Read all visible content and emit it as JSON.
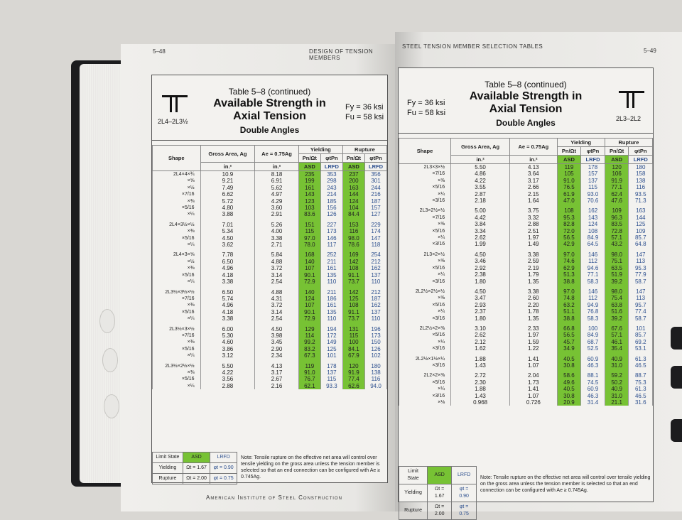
{
  "left_page": {
    "page_number": "5–48",
    "running_head": "DESIGN OF TENSION MEMBERS",
    "table_title": "Table 5–8 (continued)",
    "title_line1": "Available Strength in",
    "title_line2": "Axial Tension",
    "subtitle": "Double Angles",
    "shape_label": "2L4–2L3½",
    "fy": "Fy = 36 ksi",
    "fu": "Fu = 58 ksi",
    "footer": "American Institute of Steel Construction",
    "rows": [
      [
        "2L4×4×¾",
        "10.9",
        "8.18",
        "235",
        "353",
        "237",
        "356"
      ],
      [
        "×⅝",
        "9.21",
        "6.91",
        "199",
        "298",
        "200",
        "301"
      ],
      [
        "×½",
        "7.49",
        "5.62",
        "161",
        "243",
        "163",
        "244"
      ],
      [
        "×7/16",
        "6.62",
        "4.97",
        "143",
        "214",
        "144",
        "216"
      ],
      [
        "×⅜",
        "5.72",
        "4.29",
        "123",
        "185",
        "124",
        "187"
      ],
      [
        "×5/16",
        "4.80",
        "3.60",
        "103",
        "156",
        "104",
        "157"
      ],
      [
        "×¼",
        "3.88",
        "2.91",
        "83.6",
        "126",
        "84.4",
        "127"
      ],
      null,
      [
        "2L4×3½×½",
        "7.01",
        "5.26",
        "151",
        "227",
        "153",
        "229"
      ],
      [
        "×⅜",
        "5.34",
        "4.00",
        "115",
        "173",
        "116",
        "174"
      ],
      [
        "×5/16",
        "4.50",
        "3.38",
        "97.0",
        "146",
        "98.0",
        "147"
      ],
      [
        "×¼",
        "3.62",
        "2.71",
        "78.0",
        "117",
        "78.6",
        "118"
      ],
      null,
      [
        "2L4×3×⅝",
        "7.78",
        "5.84",
        "168",
        "252",
        "169",
        "254"
      ],
      [
        "×½",
        "6.50",
        "4.88",
        "140",
        "211",
        "142",
        "212"
      ],
      [
        "×⅜",
        "4.96",
        "3.72",
        "107",
        "161",
        "108",
        "162"
      ],
      [
        "×5/16",
        "4.18",
        "3.14",
        "90.1",
        "135",
        "91.1",
        "137"
      ],
      [
        "×¼",
        "3.38",
        "2.54",
        "72.9",
        "110",
        "73.7",
        "110"
      ],
      null,
      [
        "2L3½×3½×½",
        "6.50",
        "4.88",
        "140",
        "211",
        "142",
        "212"
      ],
      [
        "×7/16",
        "5.74",
        "4.31",
        "124",
        "186",
        "125",
        "187"
      ],
      [
        "×⅜",
        "4.96",
        "3.72",
        "107",
        "161",
        "108",
        "162"
      ],
      [
        "×5/16",
        "4.18",
        "3.14",
        "90.1",
        "135",
        "91.1",
        "137"
      ],
      [
        "×¼",
        "3.38",
        "2.54",
        "72.9",
        "110",
        "73.7",
        "110"
      ],
      null,
      [
        "2L3½×3×½",
        "6.00",
        "4.50",
        "129",
        "194",
        "131",
        "196"
      ],
      [
        "×7/16",
        "5.30",
        "3.98",
        "114",
        "172",
        "115",
        "173"
      ],
      [
        "×⅜",
        "4.60",
        "3.45",
        "99.2",
        "149",
        "100",
        "150"
      ],
      [
        "×5/16",
        "3.86",
        "2.90",
        "83.2",
        "125",
        "84.1",
        "126"
      ],
      [
        "×¼",
        "3.12",
        "2.34",
        "67.3",
        "101",
        "67.9",
        "102"
      ],
      null,
      [
        "2L3½×2½×½",
        "5.50",
        "4.13",
        "119",
        "178",
        "120",
        "180"
      ],
      [
        "×⅜",
        "4.22",
        "3.17",
        "91.0",
        "137",
        "91.9",
        "138"
      ],
      [
        "×5/16",
        "3.56",
        "2.67",
        "76.7",
        "115",
        "77.4",
        "116"
      ],
      [
        "×¼",
        "2.88",
        "2.16",
        "62.1",
        "93.3",
        "62.6",
        "94.0"
      ]
    ]
  },
  "right_page": {
    "page_number": "5–49",
    "running_head": "STEEL TENSION MEMBER SELECTION TABLES",
    "table_title": "Table 5–8 (continued)",
    "title_line1": "Available Strength in",
    "title_line2": "Axial Tension",
    "subtitle": "Double Angles",
    "shape_label": "2L3–2L2",
    "fy": "Fy = 36 ksi",
    "fu": "Fu = 58 ksi",
    "rows": [
      [
        "2L3×3×½",
        "5.50",
        "4.13",
        "119",
        "178",
        "120",
        "180"
      ],
      [
        "×7/16",
        "4.86",
        "3.64",
        "105",
        "157",
        "106",
        "158"
      ],
      [
        "×⅜",
        "4.22",
        "3.17",
        "91.0",
        "137",
        "91.9",
        "138"
      ],
      [
        "×5/16",
        "3.55",
        "2.66",
        "76.5",
        "115",
        "77.1",
        "116"
      ],
      [
        "×¼",
        "2.87",
        "2.15",
        "61.9",
        "93.0",
        "62.4",
        "93.5"
      ],
      [
        "×3/16",
        "2.18",
        "1.64",
        "47.0",
        "70.6",
        "47.6",
        "71.3"
      ],
      null,
      [
        "2L3×2½×½",
        "5.00",
        "3.75",
        "108",
        "162",
        "109",
        "163"
      ],
      [
        "×7/16",
        "4.42",
        "3.32",
        "95.3",
        "143",
        "96.3",
        "144"
      ],
      [
        "×⅜",
        "3.84",
        "2.88",
        "82.8",
        "124",
        "83.5",
        "125"
      ],
      [
        "×5/16",
        "3.34",
        "2.51",
        "72.0",
        "108",
        "72.8",
        "109"
      ],
      [
        "×¼",
        "2.62",
        "1.97",
        "56.5",
        "84.9",
        "57.1",
        "85.7"
      ],
      [
        "×3/16",
        "1.99",
        "1.49",
        "42.9",
        "64.5",
        "43.2",
        "64.8"
      ],
      null,
      [
        "2L3×2×½",
        "4.50",
        "3.38",
        "97.0",
        "146",
        "98.0",
        "147"
      ],
      [
        "×⅜",
        "3.46",
        "2.59",
        "74.6",
        "112",
        "75.1",
        "113"
      ],
      [
        "×5/16",
        "2.92",
        "2.19",
        "62.9",
        "94.6",
        "63.5",
        "95.3"
      ],
      [
        "×¼",
        "2.38",
        "1.79",
        "51.3",
        "77.1",
        "51.9",
        "77.9"
      ],
      [
        "×3/16",
        "1.80",
        "1.35",
        "38.8",
        "58.3",
        "39.2",
        "58.7"
      ],
      null,
      [
        "2L2½×2½×½",
        "4.50",
        "3.38",
        "97.0",
        "146",
        "98.0",
        "147"
      ],
      [
        "×⅜",
        "3.47",
        "2.60",
        "74.8",
        "112",
        "75.4",
        "113"
      ],
      [
        "×5/16",
        "2.93",
        "2.20",
        "63.2",
        "94.9",
        "63.8",
        "95.7"
      ],
      [
        "×¼",
        "2.37",
        "1.78",
        "51.1",
        "76.8",
        "51.6",
        "77.4"
      ],
      [
        "×3/16",
        "1.80",
        "1.35",
        "38.8",
        "58.3",
        "39.2",
        "58.7"
      ],
      null,
      [
        "2L2½×2×⅜",
        "3.10",
        "2.33",
        "66.8",
        "100",
        "67.6",
        "101"
      ],
      [
        "×5/16",
        "2.62",
        "1.97",
        "56.5",
        "84.9",
        "57.1",
        "85.7"
      ],
      [
        "×¼",
        "2.12",
        "1.59",
        "45.7",
        "68.7",
        "46.1",
        "69.2"
      ],
      [
        "×3/16",
        "1.62",
        "1.22",
        "34.9",
        "52.5",
        "35.4",
        "53.1"
      ],
      null,
      [
        "2L2½×1½×¼",
        "1.88",
        "1.41",
        "40.5",
        "60.9",
        "40.9",
        "61.3"
      ],
      [
        "×3/16",
        "1.43",
        "1.07",
        "30.8",
        "46.3",
        "31.0",
        "46.5"
      ],
      null,
      [
        "2L2×2×⅜",
        "2.72",
        "2.04",
        "58.6",
        "88.1",
        "59.2",
        "88.7"
      ],
      [
        "×5/16",
        "2.30",
        "1.73",
        "49.6",
        "74.5",
        "50.2",
        "75.3"
      ],
      [
        "×¼",
        "1.88",
        "1.41",
        "40.5",
        "60.9",
        "40.9",
        "61.3"
      ],
      [
        "×3/16",
        "1.43",
        "1.07",
        "30.8",
        "46.3",
        "31.0",
        "46.5"
      ],
      [
        "×⅛",
        "0.968",
        "0.726",
        "20.9",
        "31.4",
        "21.1",
        "31.6"
      ]
    ]
  },
  "headers": {
    "shape": "Shape",
    "gross_area": "Gross Area, Ag",
    "ae": "Ae = 0.75Ag",
    "yielding": "Yielding",
    "rupture": "Rupture",
    "kips": "kips",
    "pn_omega_t": "Pn/Ωt",
    "phi_pn": "φtPn",
    "unit": "in.²",
    "asd": "ASD",
    "lrfd": "LRFD"
  },
  "legend": {
    "limit_state": "Limit State",
    "asd": "ASD",
    "lrfd": "LRFD",
    "yielding": "Yielding",
    "rupture": "Rupture",
    "y_asd": "Ωt = 1.67",
    "y_lrfd": "φt = 0.90",
    "r_asd": "Ωt = 2.00",
    "r_lrfd": "φt = 0.75"
  },
  "note": "Note: Tensile rupture on the effective net area will control over tensile yielding on the gross area unless the tension member is selected so that an end connection can be configured with Ae ≥ 0.745Ag.",
  "colors": {
    "asd_green": "#77c234",
    "lrfd_blue": "#2c4f8e"
  }
}
